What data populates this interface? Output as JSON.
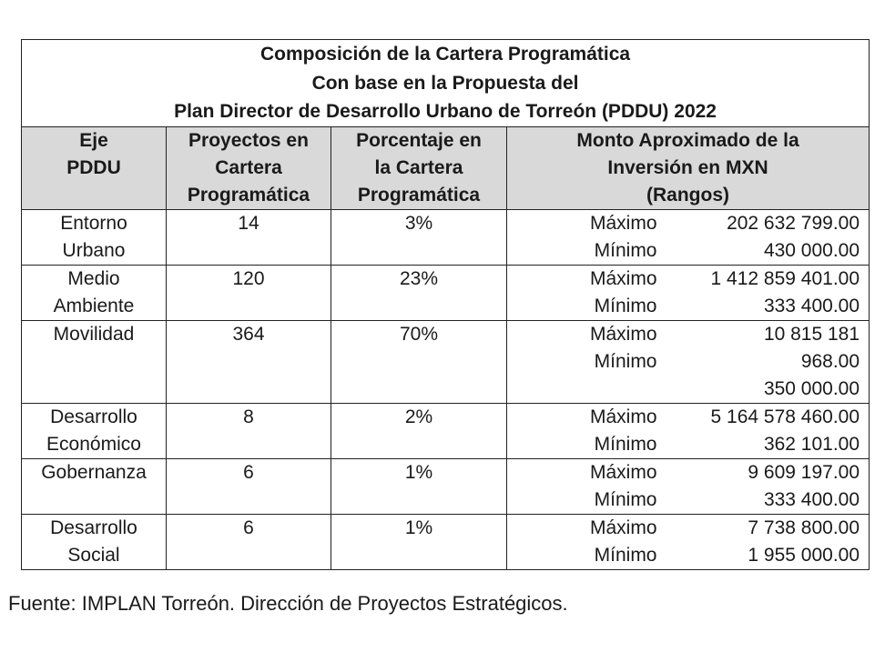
{
  "title": {
    "line1": "Composición de la Cartera Programática",
    "line2": "Con base en la Propuesta del",
    "line3": "Plan Director de Desarrollo Urbano de Torreón (PDDU) 2022"
  },
  "headers": {
    "eje": [
      "Eje",
      "PDDU"
    ],
    "proyectos": [
      "Proyectos en",
      "Cartera",
      "Programática"
    ],
    "porcentaje": [
      "Porcentaje en",
      "la Cartera",
      "Programática"
    ],
    "monto": [
      "Monto Aproximado de la",
      "Inversión en MXN",
      "(Rangos)"
    ]
  },
  "rows": [
    {
      "eje": [
        "Entorno",
        "Urbano"
      ],
      "proyectos": "14",
      "porcentaje": "3%",
      "labels": [
        "Máximo",
        "Mínimo"
      ],
      "values": [
        "202 632 799.00",
        "430 000.00"
      ]
    },
    {
      "eje": [
        "Medio",
        "Ambiente"
      ],
      "proyectos": "120",
      "porcentaje": "23%",
      "labels": [
        "Máximo",
        "Mínimo"
      ],
      "values": [
        "1 412 859 401.00",
        "333 400.00"
      ]
    },
    {
      "eje": [
        "Movilidad"
      ],
      "proyectos": "364",
      "porcentaje": "70%",
      "labels": [
        "Máximo",
        "Mínimo"
      ],
      "values": [
        "10 815 181",
        "968.00",
        "350 000.00"
      ]
    },
    {
      "eje": [
        "Desarrollo",
        "Económico"
      ],
      "proyectos": "8",
      "porcentaje": "2%",
      "labels": [
        "Máximo",
        "Mínimo"
      ],
      "values": [
        "5 164 578 460.00",
        "362 101.00"
      ]
    },
    {
      "eje": [
        "Gobernanza"
      ],
      "proyectos": "6",
      "porcentaje": "1%",
      "labels": [
        "Máximo",
        "Mínimo"
      ],
      "values": [
        "9 609 197.00",
        "333 400.00"
      ]
    },
    {
      "eje": [
        "Desarrollo",
        "Social"
      ],
      "proyectos": "6",
      "porcentaje": "1%",
      "labels": [
        "Máximo",
        "Mínimo"
      ],
      "values": [
        "7 738 800.00",
        "1 955 000.00"
      ]
    }
  ],
  "source": "Fuente: IMPLAN Torreón. Dirección de Proyectos Estratégicos."
}
